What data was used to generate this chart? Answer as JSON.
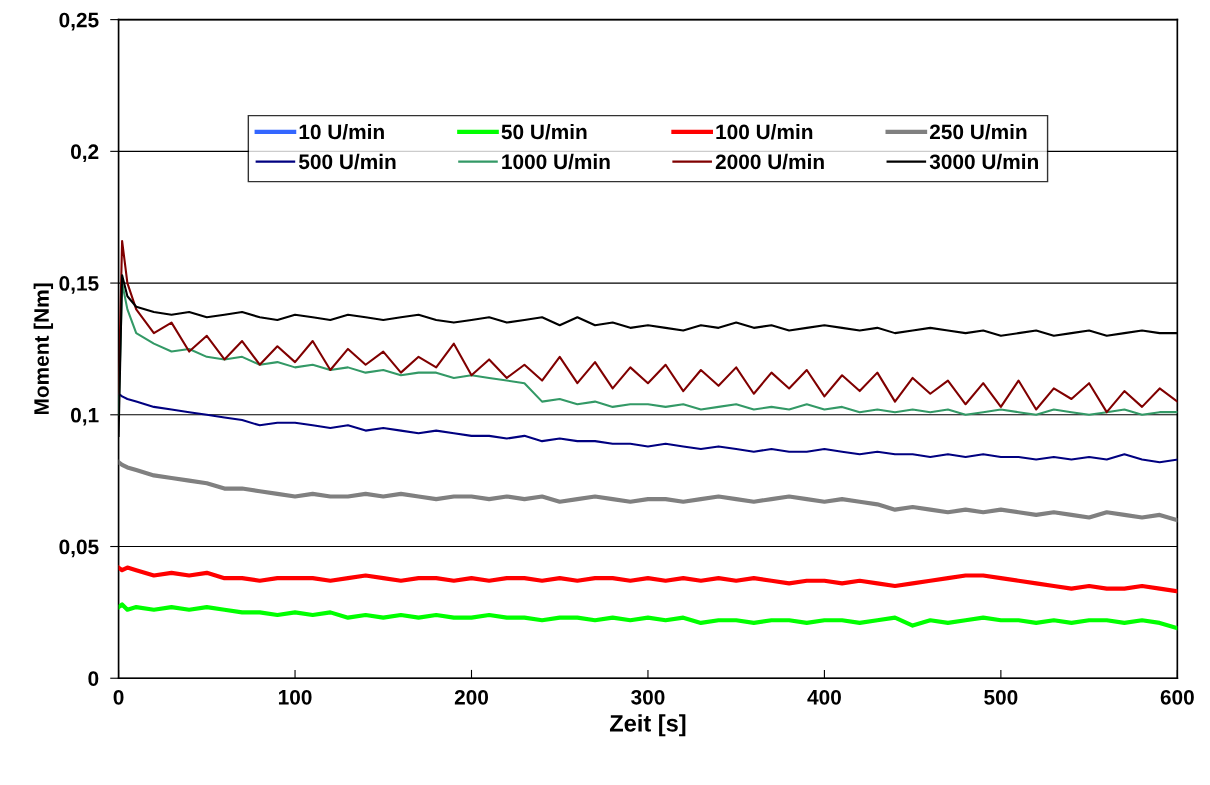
{
  "chart_data": {
    "type": "line",
    "xlabel": "Zeit [s]",
    "ylabel": "Moment [Nm]",
    "x": [
      0,
      2,
      5,
      10,
      20,
      30,
      40,
      50,
      60,
      70,
      80,
      90,
      100,
      110,
      120,
      130,
      140,
      150,
      160,
      170,
      180,
      190,
      200,
      210,
      220,
      230,
      240,
      250,
      260,
      270,
      280,
      290,
      300,
      310,
      320,
      330,
      340,
      350,
      360,
      370,
      380,
      390,
      400,
      410,
      420,
      430,
      440,
      450,
      460,
      470,
      480,
      490,
      500,
      510,
      520,
      530,
      540,
      550,
      560,
      570,
      580,
      590,
      600
    ],
    "xlim": [
      0,
      600
    ],
    "xticks": [
      0,
      100,
      200,
      300,
      400,
      500,
      600
    ],
    "ylim": [
      0,
      0.25
    ],
    "yticks": [
      {
        "value": 0,
        "label": "0"
      },
      {
        "value": 0.05,
        "label": "0,05"
      },
      {
        "value": 0.1,
        "label": "0,1"
      },
      {
        "value": 0.15,
        "label": "0,15"
      },
      {
        "value": 0.2,
        "label": "0,2"
      },
      {
        "value": 0.25,
        "label": "0,25"
      }
    ],
    "grid": "y",
    "legend": "top",
    "marker": "none",
    "line_style": "solid",
    "series": [
      {
        "name": "10 U/min",
        "color": "#3366ff",
        "values": [
          null,
          null,
          null,
          null,
          null,
          null,
          null,
          null,
          null,
          null,
          null,
          null,
          null,
          null,
          null,
          null,
          null,
          null,
          null,
          null,
          null,
          null,
          null,
          null,
          null,
          null,
          null,
          null,
          null,
          null,
          null,
          null,
          null,
          null,
          null,
          null,
          null,
          null,
          null,
          null,
          null,
          null,
          null,
          null,
          null,
          null,
          null,
          null,
          null,
          null,
          null,
          null,
          null,
          null,
          null,
          null,
          null,
          null,
          null,
          null,
          null,
          null,
          null
        ]
      },
      {
        "name": "50 U/min",
        "color": "#00ff00",
        "values": [
          0.027,
          0.028,
          0.026,
          0.027,
          0.026,
          0.027,
          0.026,
          0.027,
          0.026,
          0.025,
          0.025,
          0.024,
          0.025,
          0.024,
          0.025,
          0.023,
          0.024,
          0.023,
          0.024,
          0.023,
          0.024,
          0.023,
          0.023,
          0.024,
          0.023,
          0.023,
          0.022,
          0.023,
          0.023,
          0.022,
          0.023,
          0.022,
          0.023,
          0.022,
          0.023,
          0.021,
          0.022,
          0.022,
          0.021,
          0.022,
          0.022,
          0.021,
          0.022,
          0.022,
          0.021,
          0.022,
          0.023,
          0.02,
          0.022,
          0.021,
          0.022,
          0.023,
          0.022,
          0.022,
          0.021,
          0.022,
          0.021,
          0.022,
          0.022,
          0.021,
          0.022,
          0.021,
          0.019
        ]
      },
      {
        "name": "100 U/min",
        "color": "#ff0000",
        "values": [
          0.042,
          0.041,
          0.042,
          0.041,
          0.039,
          0.04,
          0.039,
          0.04,
          0.038,
          0.038,
          0.037,
          0.038,
          0.038,
          0.038,
          0.037,
          0.038,
          0.039,
          0.038,
          0.037,
          0.038,
          0.038,
          0.037,
          0.038,
          0.037,
          0.038,
          0.038,
          0.037,
          0.038,
          0.037,
          0.038,
          0.038,
          0.037,
          0.038,
          0.037,
          0.038,
          0.037,
          0.038,
          0.037,
          0.038,
          0.037,
          0.036,
          0.037,
          0.037,
          0.036,
          0.037,
          0.036,
          0.035,
          0.036,
          0.037,
          0.038,
          0.039,
          0.039,
          0.038,
          0.037,
          0.036,
          0.035,
          0.034,
          0.035,
          0.034,
          0.034,
          0.035,
          0.034,
          0.033
        ]
      },
      {
        "name": "250 U/min",
        "color": "#808080",
        "values": [
          0.082,
          0.081,
          0.08,
          0.079,
          0.077,
          0.076,
          0.075,
          0.074,
          0.072,
          0.072,
          0.071,
          0.07,
          0.069,
          0.07,
          0.069,
          0.069,
          0.07,
          0.069,
          0.07,
          0.069,
          0.068,
          0.069,
          0.069,
          0.068,
          0.069,
          0.068,
          0.069,
          0.067,
          0.068,
          0.069,
          0.068,
          0.067,
          0.068,
          0.068,
          0.067,
          0.068,
          0.069,
          0.068,
          0.067,
          0.068,
          0.069,
          0.068,
          0.067,
          0.068,
          0.067,
          0.066,
          0.064,
          0.065,
          0.064,
          0.063,
          0.064,
          0.063,
          0.064,
          0.063,
          0.062,
          0.063,
          0.062,
          0.061,
          0.063,
          0.062,
          0.061,
          0.062,
          0.06
        ]
      },
      {
        "name": "500 U/min",
        "color": "#000080",
        "values": [
          0.108,
          0.107,
          0.106,
          0.105,
          0.103,
          0.102,
          0.101,
          0.1,
          0.099,
          0.098,
          0.096,
          0.097,
          0.097,
          0.096,
          0.095,
          0.096,
          0.094,
          0.095,
          0.094,
          0.093,
          0.094,
          0.093,
          0.092,
          0.092,
          0.091,
          0.092,
          0.09,
          0.091,
          0.09,
          0.09,
          0.089,
          0.089,
          0.088,
          0.089,
          0.088,
          0.087,
          0.088,
          0.087,
          0.086,
          0.087,
          0.086,
          0.086,
          0.087,
          0.086,
          0.085,
          0.086,
          0.085,
          0.085,
          0.084,
          0.085,
          0.084,
          0.085,
          0.084,
          0.084,
          0.083,
          0.084,
          0.083,
          0.084,
          0.083,
          0.085,
          0.083,
          0.082,
          0.083
        ]
      },
      {
        "name": "1000 U/min",
        "color": "#339966",
        "values": [
          0.1,
          0.15,
          0.14,
          0.131,
          0.127,
          0.124,
          0.125,
          0.122,
          0.121,
          0.122,
          0.119,
          0.12,
          0.118,
          0.119,
          0.117,
          0.118,
          0.116,
          0.117,
          0.115,
          0.116,
          0.116,
          0.114,
          0.115,
          0.114,
          0.113,
          0.112,
          0.105,
          0.106,
          0.104,
          0.105,
          0.103,
          0.104,
          0.104,
          0.103,
          0.104,
          0.102,
          0.103,
          0.104,
          0.102,
          0.103,
          0.102,
          0.104,
          0.102,
          0.103,
          0.101,
          0.102,
          0.101,
          0.102,
          0.101,
          0.102,
          0.1,
          0.101,
          0.102,
          0.101,
          0.1,
          0.102,
          0.101,
          0.1,
          0.101,
          0.102,
          0.1,
          0.101,
          0.101
        ]
      },
      {
        "name": "2000 U/min",
        "color": "#800000",
        "values": [
          0.108,
          0.166,
          0.15,
          0.14,
          0.131,
          0.135,
          0.124,
          0.13,
          0.121,
          0.128,
          0.119,
          0.126,
          0.12,
          0.128,
          0.117,
          0.125,
          0.119,
          0.124,
          0.116,
          0.122,
          0.118,
          0.127,
          0.115,
          0.121,
          0.114,
          0.119,
          0.113,
          0.122,
          0.112,
          0.12,
          0.11,
          0.118,
          0.112,
          0.119,
          0.109,
          0.117,
          0.111,
          0.118,
          0.108,
          0.116,
          0.11,
          0.117,
          0.107,
          0.115,
          0.109,
          0.116,
          0.105,
          0.114,
          0.108,
          0.113,
          0.104,
          0.112,
          0.103,
          0.113,
          0.102,
          0.11,
          0.106,
          0.112,
          0.101,
          0.109,
          0.103,
          0.11,
          0.105
        ]
      },
      {
        "name": "3000 U/min",
        "color": "#000000",
        "values": [
          0.092,
          0.153,
          0.145,
          0.141,
          0.139,
          0.138,
          0.139,
          0.137,
          0.138,
          0.139,
          0.137,
          0.136,
          0.138,
          0.137,
          0.136,
          0.138,
          0.137,
          0.136,
          0.137,
          0.138,
          0.136,
          0.135,
          0.136,
          0.137,
          0.135,
          0.136,
          0.137,
          0.134,
          0.137,
          0.134,
          0.135,
          0.133,
          0.134,
          0.133,
          0.132,
          0.134,
          0.133,
          0.135,
          0.133,
          0.134,
          0.132,
          0.133,
          0.134,
          0.133,
          0.132,
          0.133,
          0.131,
          0.132,
          0.133,
          0.132,
          0.131,
          0.132,
          0.13,
          0.131,
          0.132,
          0.13,
          0.131,
          0.132,
          0.13,
          0.131,
          0.132,
          0.131,
          0.131
        ]
      }
    ]
  }
}
